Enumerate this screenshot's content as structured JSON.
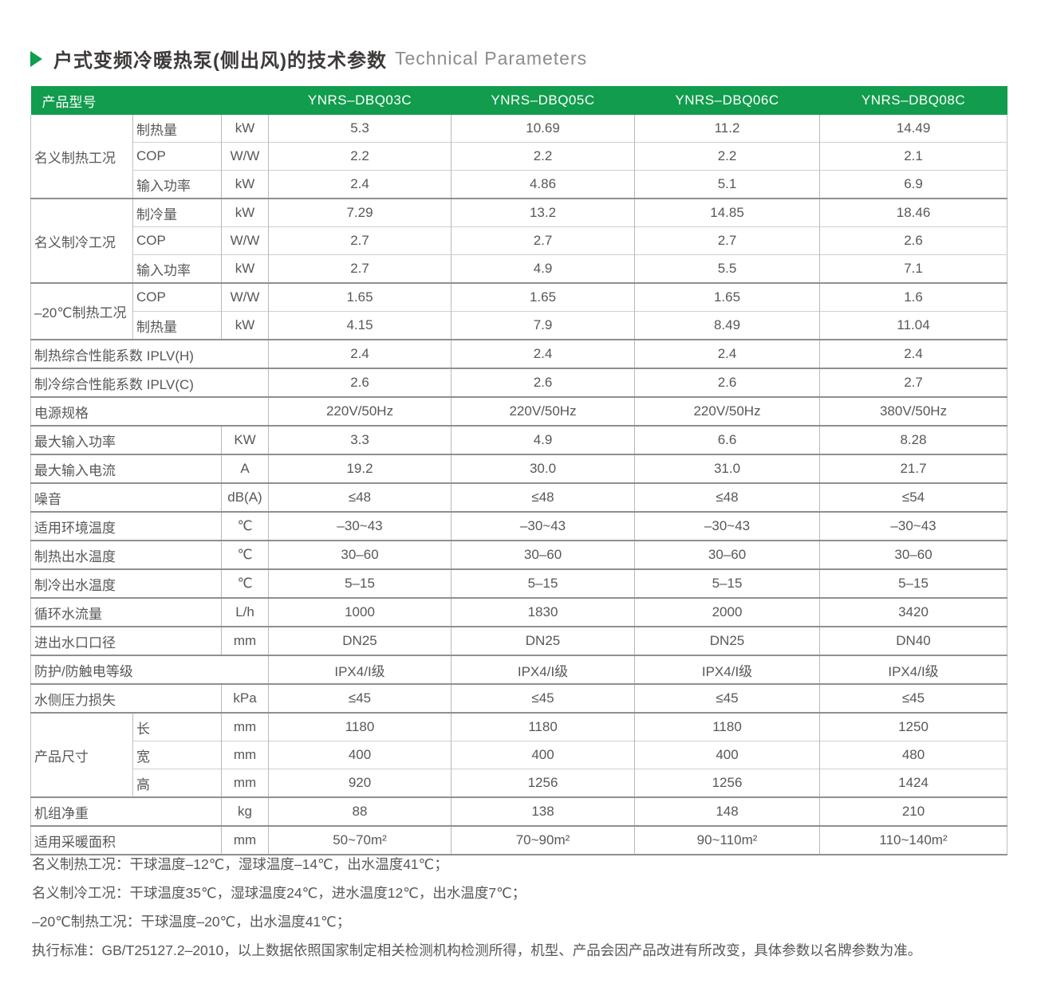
{
  "title": {
    "cn": "户式变频冷暖热泵(侧出风)的技术参数",
    "en": "Technical Parameters"
  },
  "colors": {
    "accent_green": "#119C4E",
    "title_text": "#3e3a39",
    "body_text": "#595757"
  },
  "table": {
    "header": {
      "label": "产品型号",
      "models": [
        "YNRS–DBQ03C",
        "YNRS–DBQ05C",
        "YNRS–DBQ06C",
        "YNRS–DBQ08C"
      ]
    },
    "rows": [
      {
        "group": {
          "text": "名义制热工况",
          "rowspan": 3
        },
        "label": "制热量",
        "labelCols": 1,
        "unit": "kW",
        "values": [
          "5.3",
          "10.69",
          "11.2",
          "14.49"
        ],
        "sec": true
      },
      {
        "label": "COP",
        "labelCols": 1,
        "unit": "W/W",
        "values": [
          "2.2",
          "2.2",
          "2.2",
          "2.1"
        ],
        "sec": false
      },
      {
        "label": "输入功率",
        "labelCols": 1,
        "unit": "kW",
        "values": [
          "2.4",
          "4.86",
          "5.1",
          "6.9"
        ],
        "sec": false
      },
      {
        "group": {
          "text": "名义制冷工况",
          "rowspan": 3
        },
        "label": "制冷量",
        "labelCols": 1,
        "unit": "kW",
        "values": [
          "7.29",
          "13.2",
          "14.85",
          "18.46"
        ],
        "sec": true
      },
      {
        "label": "COP",
        "labelCols": 1,
        "unit": "W/W",
        "values": [
          "2.7",
          "2.7",
          "2.7",
          "2.6"
        ],
        "sec": false
      },
      {
        "label": "输入功率",
        "labelCols": 1,
        "unit": "kW",
        "values": [
          "2.7",
          "4.9",
          "5.5",
          "7.1"
        ],
        "sec": false
      },
      {
        "group": {
          "text": "–20℃制热工况",
          "rowspan": 2
        },
        "label": "COP",
        "labelCols": 1,
        "unit": "W/W",
        "values": [
          "1.65",
          "1.65",
          "1.65",
          "1.6"
        ],
        "sec": true
      },
      {
        "label": "制热量",
        "labelCols": 1,
        "unit": "kW",
        "values": [
          "4.15",
          "7.9",
          "8.49",
          "11.04"
        ],
        "sec": false
      },
      {
        "label": "制热综合性能系数 IPLV(H)",
        "labelCols": 3,
        "unit": null,
        "values": [
          "2.4",
          "2.4",
          "2.4",
          "2.4"
        ],
        "sec": true
      },
      {
        "label": "制冷综合性能系数 IPLV(C)",
        "labelCols": 3,
        "unit": null,
        "values": [
          "2.6",
          "2.6",
          "2.6",
          "2.7"
        ],
        "sec": true
      },
      {
        "label": "电源规格",
        "labelCols": 3,
        "unit": null,
        "values": [
          "220V/50Hz",
          "220V/50Hz",
          "220V/50Hz",
          "380V/50Hz"
        ],
        "sec": true
      },
      {
        "label": "最大输入功率",
        "labelCols": 2,
        "unit": "KW",
        "values": [
          "3.3",
          "4.9",
          "6.6",
          "8.28"
        ],
        "sec": true
      },
      {
        "label": "最大输入电流",
        "labelCols": 2,
        "unit": "A",
        "values": [
          "19.2",
          "30.0",
          "31.0",
          "21.7"
        ],
        "sec": true
      },
      {
        "label": "噪音",
        "labelCols": 2,
        "unit": "dB(A)",
        "values": [
          "≤48",
          "≤48",
          "≤48",
          "≤54"
        ],
        "sec": true
      },
      {
        "label": "适用环境温度",
        "labelCols": 2,
        "unit": "℃",
        "values": [
          "–30~43",
          "–30~43",
          "–30~43",
          "–30~43"
        ],
        "sec": true
      },
      {
        "label": "制热出水温度",
        "labelCols": 2,
        "unit": "℃",
        "values": [
          "30–60",
          "30–60",
          "30–60",
          "30–60"
        ],
        "sec": true
      },
      {
        "label": "制冷出水温度",
        "labelCols": 2,
        "unit": "℃",
        "values": [
          "5–15",
          "5–15",
          "5–15",
          "5–15"
        ],
        "sec": true
      },
      {
        "label": "循环水流量",
        "labelCols": 2,
        "unit": "L/h",
        "values": [
          "1000",
          "1830",
          "2000",
          "3420"
        ],
        "sec": true
      },
      {
        "label": "进出水口口径",
        "labelCols": 2,
        "unit": "mm",
        "values": [
          "DN25",
          "DN25",
          "DN25",
          "DN40"
        ],
        "sec": true
      },
      {
        "label": "防护/防触电等级",
        "labelCols": 3,
        "unit": null,
        "values": [
          "IPX4/I级",
          "IPX4/I级",
          "IPX4/I级",
          "IPX4/I级"
        ],
        "sec": true
      },
      {
        "label": "水侧压力损失",
        "labelCols": 2,
        "unit": "kPa",
        "values": [
          "≤45",
          "≤45",
          "≤45",
          "≤45"
        ],
        "sec": true
      },
      {
        "group": {
          "text": "产品尺寸",
          "rowspan": 3
        },
        "label": "长",
        "labelCols": 1,
        "unit": "mm",
        "values": [
          "1180",
          "1180",
          "1180",
          "1250"
        ],
        "sec": true
      },
      {
        "label": "宽",
        "labelCols": 1,
        "unit": "mm",
        "values": [
          "400",
          "400",
          "400",
          "480"
        ],
        "sec": false
      },
      {
        "label": "高",
        "labelCols": 1,
        "unit": "mm",
        "values": [
          "920",
          "1256",
          "1256",
          "1424"
        ],
        "sec": false
      },
      {
        "label": "机组净重",
        "labelCols": 2,
        "unit": "kg",
        "values": [
          "88",
          "138",
          "148",
          "210"
        ],
        "sec": true
      },
      {
        "label": "适用采暖面积",
        "labelCols": 2,
        "unit": "mm",
        "values": [
          "50~70m²",
          "70~90m²",
          "90~110m²",
          "110~140m²"
        ],
        "sec": true
      }
    ]
  },
  "notes": [
    "名义制热工况：干球温度–12℃，湿球温度–14℃，出水温度41℃；",
    "名义制冷工况：干球温度35℃，湿球温度24℃，进水温度12℃，出水温度7℃；",
    "–20℃制热工况：干球温度–20℃，出水温度41℃；",
    "执行标准：GB/T25127.2–2010，以上数据依照国家制定相关检测机构检测所得，机型、产品会因产品改进有所改变，具体参数以名牌参数为准。"
  ]
}
